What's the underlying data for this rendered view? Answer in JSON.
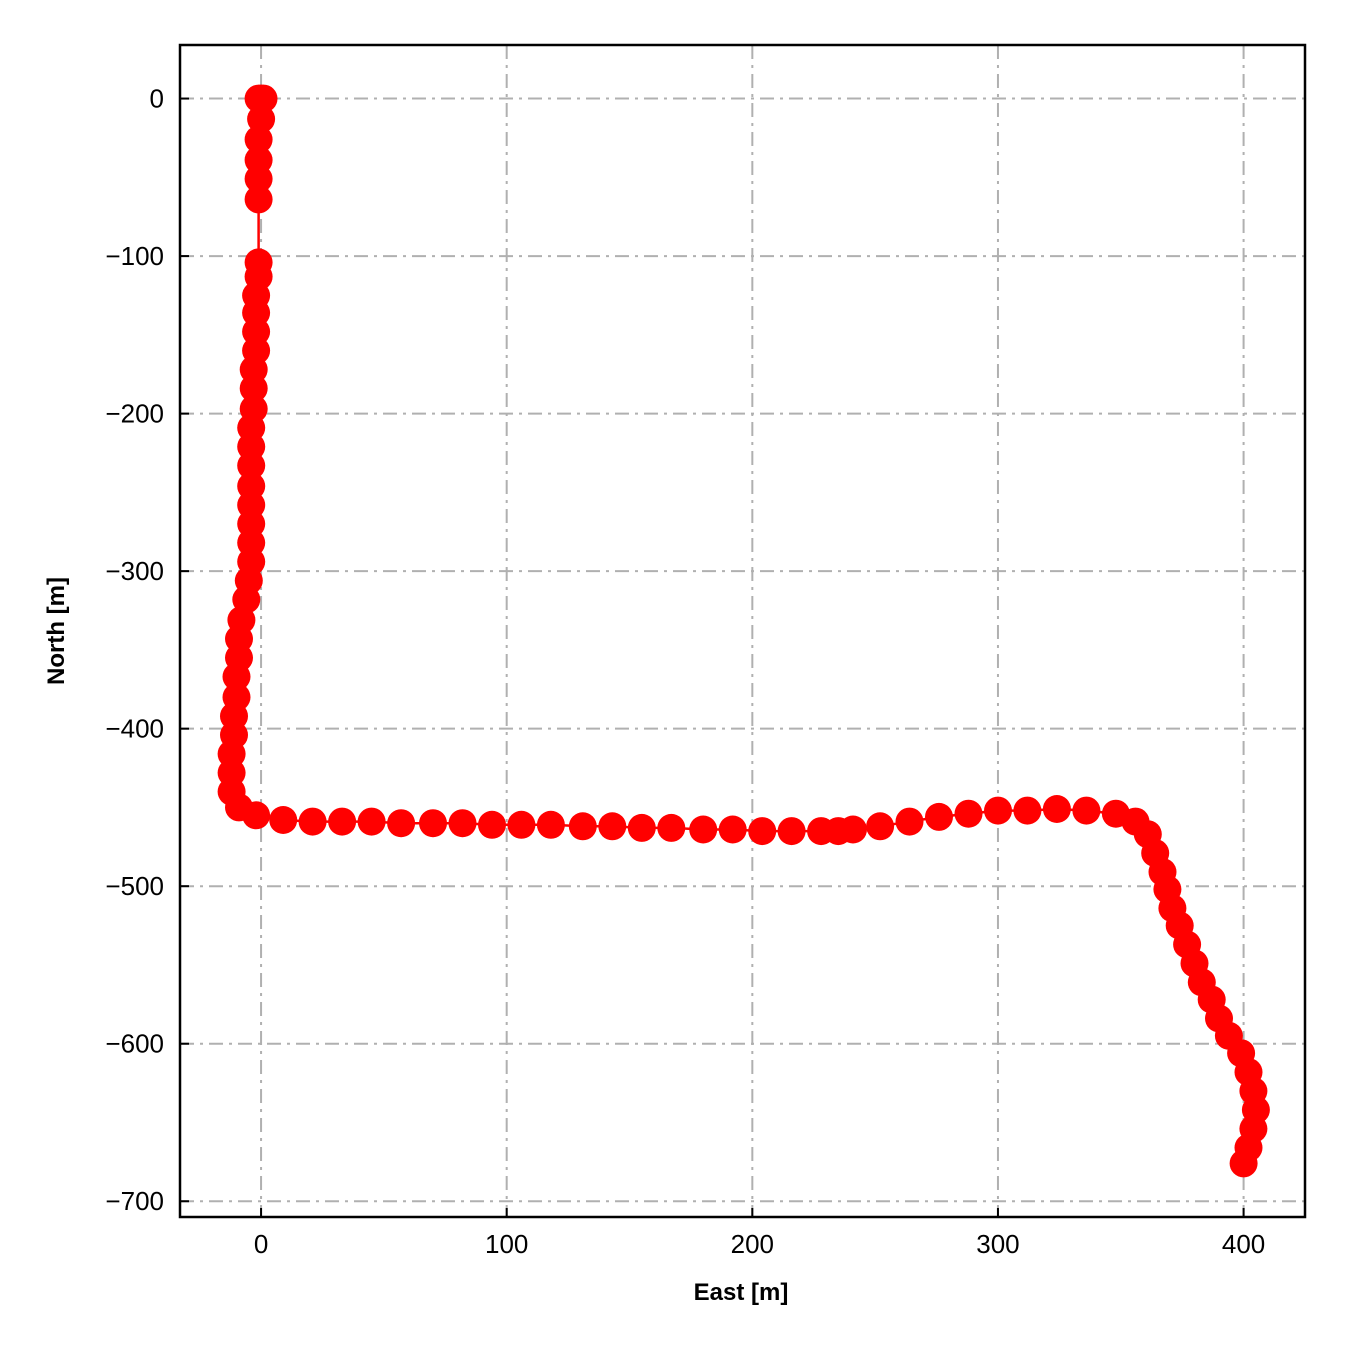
{
  "chart_data": {
    "type": "line",
    "title": "",
    "xlabel": "East [m]",
    "ylabel": "North [m]",
    "xlim": [
      -33,
      425
    ],
    "ylim": [
      -710,
      34
    ],
    "grid": true,
    "xticks": [
      0,
      100,
      200,
      300,
      400
    ],
    "yticks": [
      0,
      -100,
      -200,
      -300,
      -400,
      -500,
      -600,
      -700
    ],
    "xtick_labels": [
      "0",
      "100",
      "200",
      "300",
      "400"
    ],
    "ytick_labels": [
      "0",
      "−100",
      "−200",
      "−300",
      "−400",
      "−500",
      "−600",
      "−700"
    ],
    "colors": {
      "series": "#ff0000",
      "grid": "#b0b0b0",
      "axes": "#000000"
    },
    "series": [
      {
        "marker": "circle",
        "points": [
          {
            "x": -1,
            "y": 0
          },
          {
            "x": 0,
            "y": 0
          },
          {
            "x": 1,
            "y": 0
          },
          {
            "x": 0,
            "y": -13
          },
          {
            "x": -1,
            "y": -26
          },
          {
            "x": -1,
            "y": -39
          },
          {
            "x": -1,
            "y": -51
          },
          {
            "x": -1,
            "y": -64
          },
          {
            "x": -1,
            "y": -104
          },
          {
            "x": -1,
            "y": -113
          },
          {
            "x": -2,
            "y": -125
          },
          {
            "x": -2,
            "y": -136
          },
          {
            "x": -2,
            "y": -148
          },
          {
            "x": -2,
            "y": -160
          },
          {
            "x": -3,
            "y": -172
          },
          {
            "x": -3,
            "y": -184
          },
          {
            "x": -3,
            "y": -197
          },
          {
            "x": -4,
            "y": -209
          },
          {
            "x": -4,
            "y": -221
          },
          {
            "x": -4,
            "y": -233
          },
          {
            "x": -4,
            "y": -246
          },
          {
            "x": -4,
            "y": -258
          },
          {
            "x": -4,
            "y": -270
          },
          {
            "x": -4,
            "y": -282
          },
          {
            "x": -4,
            "y": -294
          },
          {
            "x": -5,
            "y": -306
          },
          {
            "x": -6,
            "y": -318
          },
          {
            "x": -8,
            "y": -331
          },
          {
            "x": -9,
            "y": -343
          },
          {
            "x": -9,
            "y": -355
          },
          {
            "x": -10,
            "y": -367
          },
          {
            "x": -10,
            "y": -380
          },
          {
            "x": -11,
            "y": -392
          },
          {
            "x": -11,
            "y": -404
          },
          {
            "x": -12,
            "y": -416
          },
          {
            "x": -12,
            "y": -428
          },
          {
            "x": -12,
            "y": -440
          },
          {
            "x": -9,
            "y": -450
          },
          {
            "x": -2,
            "y": -455
          },
          {
            "x": 9,
            "y": -458
          },
          {
            "x": 21,
            "y": -459
          },
          {
            "x": 33,
            "y": -459
          },
          {
            "x": 45,
            "y": -459
          },
          {
            "x": 57,
            "y": -460
          },
          {
            "x": 70,
            "y": -460
          },
          {
            "x": 82,
            "y": -460
          },
          {
            "x": 94,
            "y": -461
          },
          {
            "x": 106,
            "y": -461
          },
          {
            "x": 118,
            "y": -461
          },
          {
            "x": 131,
            "y": -462
          },
          {
            "x": 143,
            "y": -462
          },
          {
            "x": 155,
            "y": -463
          },
          {
            "x": 167,
            "y": -463
          },
          {
            "x": 180,
            "y": -464
          },
          {
            "x": 192,
            "y": -464
          },
          {
            "x": 204,
            "y": -465
          },
          {
            "x": 216,
            "y": -465
          },
          {
            "x": 228,
            "y": -465
          },
          {
            "x": 235,
            "y": -465
          },
          {
            "x": 241,
            "y": -464
          },
          {
            "x": 252,
            "y": -462
          },
          {
            "x": 264,
            "y": -459
          },
          {
            "x": 276,
            "y": -456
          },
          {
            "x": 288,
            "y": -454
          },
          {
            "x": 300,
            "y": -452
          },
          {
            "x": 312,
            "y": -452
          },
          {
            "x": 324,
            "y": -451
          },
          {
            "x": 336,
            "y": -452
          },
          {
            "x": 348,
            "y": -454
          },
          {
            "x": 356,
            "y": -459
          },
          {
            "x": 361,
            "y": -467
          },
          {
            "x": 364,
            "y": -479
          },
          {
            "x": 367,
            "y": -491
          },
          {
            "x": 369,
            "y": -502
          },
          {
            "x": 371,
            "y": -514
          },
          {
            "x": 374,
            "y": -525
          },
          {
            "x": 377,
            "y": -537
          },
          {
            "x": 380,
            "y": -549
          },
          {
            "x": 383,
            "y": -561
          },
          {
            "x": 387,
            "y": -572
          },
          {
            "x": 390,
            "y": -584
          },
          {
            "x": 394,
            "y": -595
          },
          {
            "x": 399,
            "y": -606
          },
          {
            "x": 402,
            "y": -618
          },
          {
            "x": 404,
            "y": -630
          },
          {
            "x": 405,
            "y": -642
          },
          {
            "x": 404,
            "y": -654
          },
          {
            "x": 402,
            "y": -666
          },
          {
            "x": 400,
            "y": -676
          }
        ]
      }
    ]
  }
}
